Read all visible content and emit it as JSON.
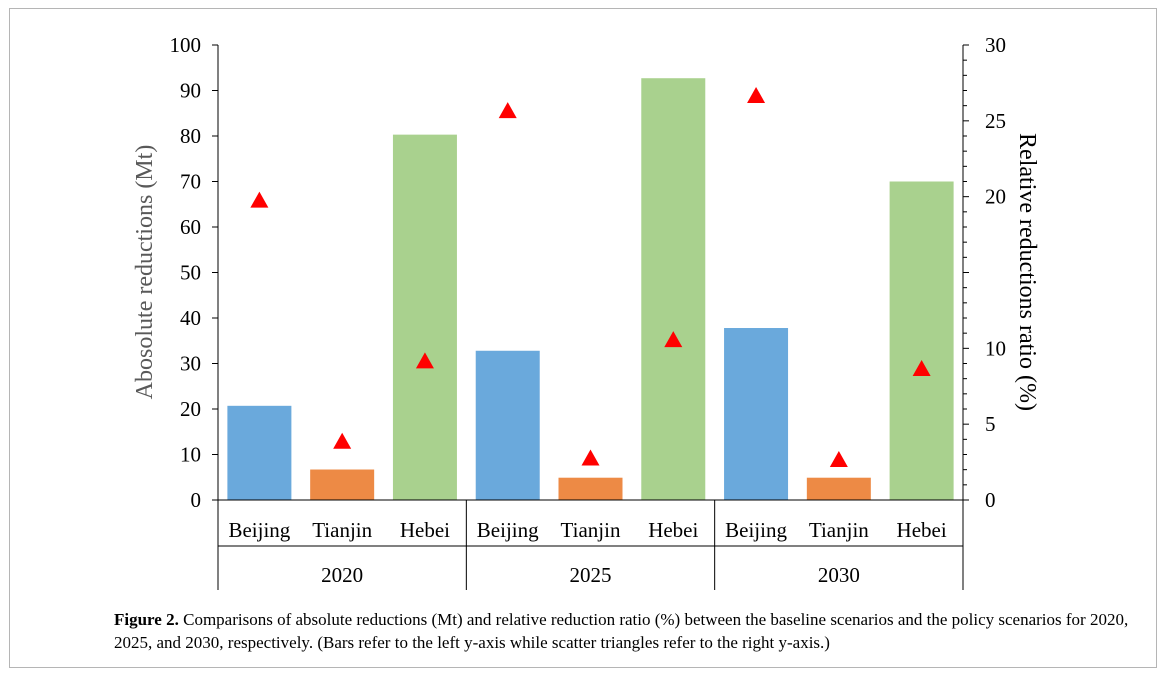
{
  "chart_data": {
    "type": "bar",
    "groups": [
      {
        "year": "2020",
        "categories": [
          "Beijing",
          "Tianjin",
          "Hebei"
        ],
        "bar_values": [
          20.7,
          6.7,
          80.3
        ],
        "ratio_values": [
          19.7,
          3.8,
          9.1
        ]
      },
      {
        "year": "2025",
        "categories": [
          "Beijing",
          "Tianjin",
          "Hebei"
        ],
        "bar_values": [
          32.8,
          4.9,
          92.7
        ],
        "ratio_values": [
          25.6,
          2.7,
          10.5
        ]
      },
      {
        "year": "2030",
        "categories": [
          "Beijing",
          "Tianjin",
          "Hebei"
        ],
        "bar_values": [
          37.8,
          4.9,
          70.0
        ],
        "ratio_values": [
          26.6,
          2.6,
          8.6
        ]
      }
    ],
    "bar_colors": {
      "Beijing": "#6aa9dc",
      "Tianjin": "#ed8a45",
      "Hebei": "#a9d18e"
    },
    "marker": {
      "shape": "triangle",
      "color": "#ff0000"
    },
    "ylabel": "Abosolute reductions (Mt)",
    "y2label": "Relative reductions ratio  (%)",
    "ylim": [
      0,
      100
    ],
    "y2lim": [
      0,
      30
    ],
    "yticks": [
      0,
      10,
      20,
      30,
      40,
      50,
      60,
      70,
      80,
      90,
      100
    ],
    "y2ticks": [
      0,
      5,
      10,
      20,
      25,
      30
    ],
    "grid": false,
    "legend": "none"
  },
  "caption": {
    "label": "Figure 2.",
    "text": "Comparisons of absolute reductions (Mt) and relative reduction ratio (%) between the baseline scenarios and the policy scenarios for 2020, 2025, and 2030, respectively. (Bars refer to the left y-axis while scatter triangles refer to the right y-axis.)"
  }
}
